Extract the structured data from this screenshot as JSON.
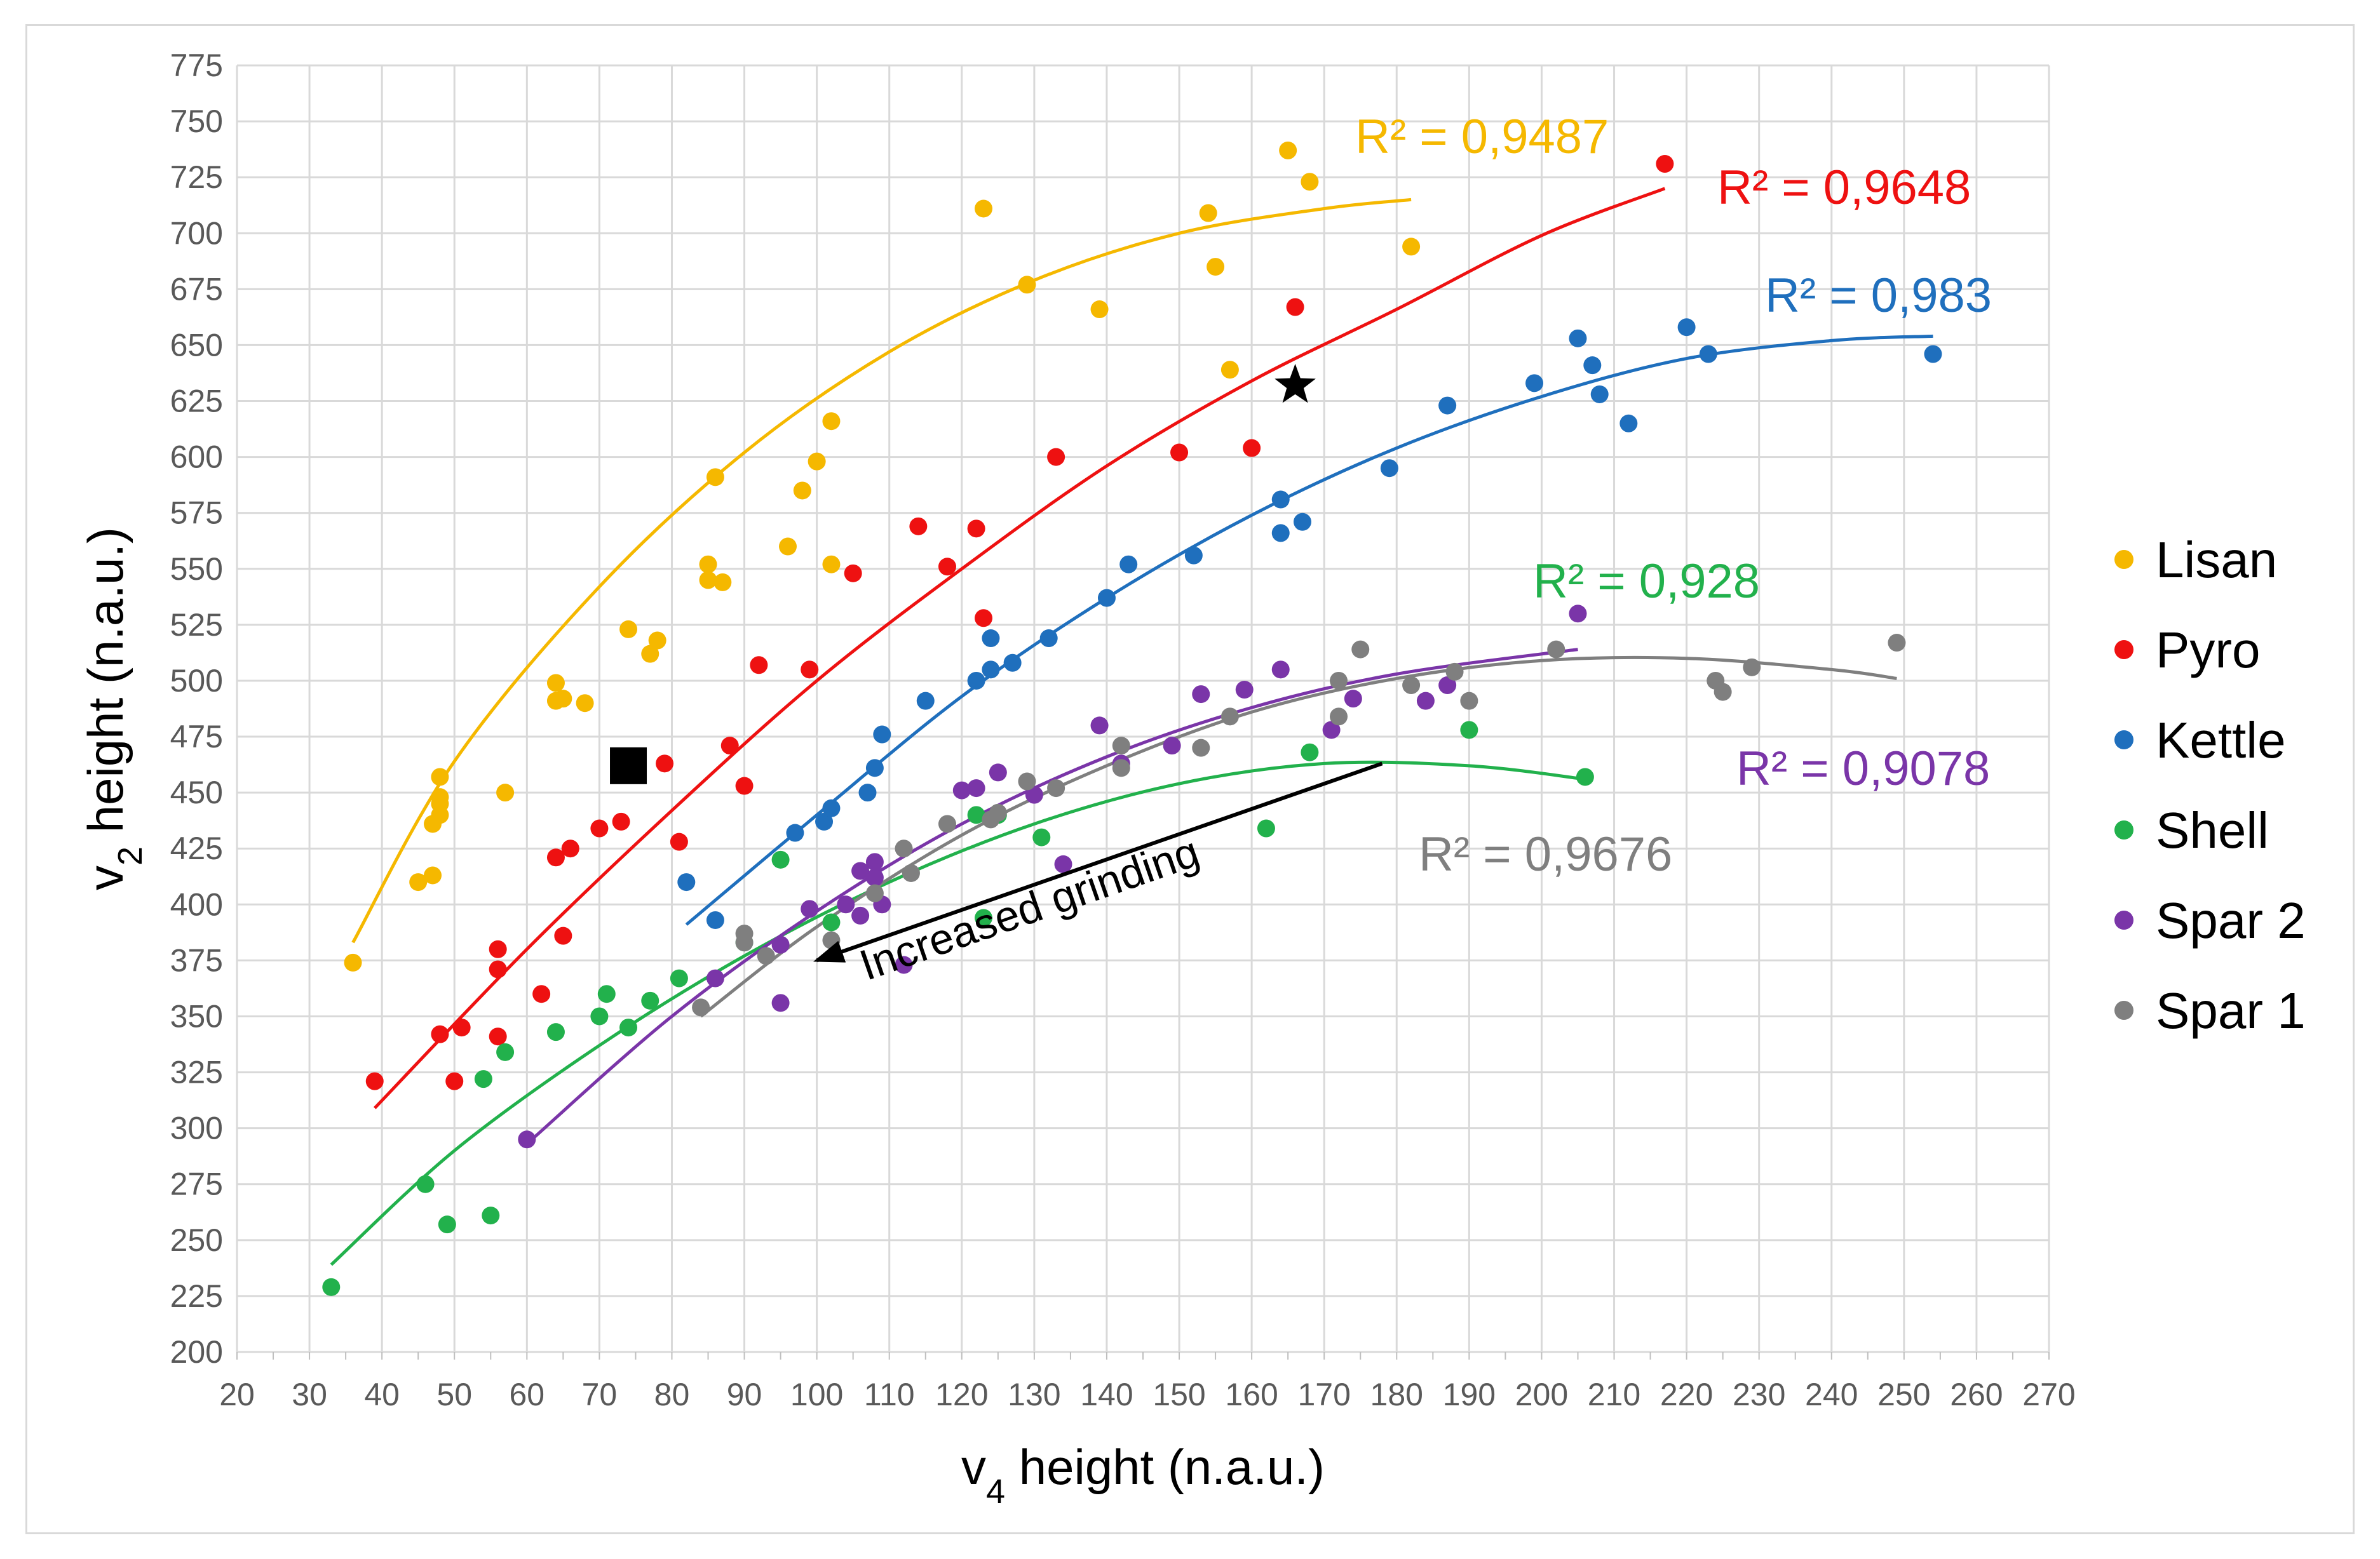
{
  "chart_data": {
    "type": "scatter",
    "title": "",
    "xlabel": "v4 height (n.a.u.)",
    "ylabel": "v2 height (n.a.u.)",
    "xlim": [
      20,
      270
    ],
    "ylim": [
      200,
      775
    ],
    "xticks": [
      20,
      30,
      40,
      50,
      60,
      70,
      80,
      90,
      100,
      110,
      120,
      130,
      140,
      150,
      160,
      170,
      180,
      190,
      200,
      210,
      220,
      230,
      240,
      250,
      260,
      270
    ],
    "yticks": [
      200,
      225,
      250,
      275,
      300,
      325,
      350,
      375,
      400,
      425,
      450,
      475,
      500,
      525,
      550,
      575,
      600,
      625,
      650,
      675,
      700,
      725,
      750,
      775
    ],
    "grid": true,
    "legend_position": "right",
    "series": [
      {
        "name": "Lisan",
        "color": "#f5b800",
        "r2_label": "R² = 0,9487",
        "points": [
          [
            36,
            374
          ],
          [
            45,
            410
          ],
          [
            47,
            413
          ],
          [
            47,
            436
          ],
          [
            48,
            440
          ],
          [
            48,
            445
          ],
          [
            48,
            448
          ],
          [
            48,
            457
          ],
          [
            57,
            450
          ],
          [
            64,
            491
          ],
          [
            64,
            499
          ],
          [
            65,
            492
          ],
          [
            68,
            490
          ],
          [
            74,
            523
          ],
          [
            77,
            512
          ],
          [
            78,
            518
          ],
          [
            85,
            545
          ],
          [
            85,
            552
          ],
          [
            86,
            591
          ],
          [
            87,
            544
          ],
          [
            96,
            560
          ],
          [
            98,
            585
          ],
          [
            100,
            598
          ],
          [
            102,
            552
          ],
          [
            102,
            616
          ],
          [
            123,
            711
          ],
          [
            129,
            677
          ],
          [
            139,
            666
          ],
          [
            154,
            709
          ],
          [
            155,
            685
          ],
          [
            157,
            639
          ],
          [
            165,
            737
          ],
          [
            168,
            723
          ],
          [
            182,
            694
          ]
        ],
        "fit": [
          [
            36,
            383
          ],
          [
            50,
            464
          ],
          [
            70,
            542
          ],
          [
            90,
            602
          ],
          [
            110,
            647
          ],
          [
            130,
            679
          ],
          [
            150,
            700
          ],
          [
            170,
            711
          ],
          [
            182,
            715
          ]
        ]
      },
      {
        "name": "Pyro",
        "color": "#ee1111",
        "r2_label": "R² = 0,9648",
        "points": [
          [
            39,
            321
          ],
          [
            48,
            342
          ],
          [
            50,
            321
          ],
          [
            51,
            345
          ],
          [
            56,
            341
          ],
          [
            56,
            371
          ],
          [
            56,
            380
          ],
          [
            62,
            360
          ],
          [
            64,
            421
          ],
          [
            65,
            386
          ],
          [
            66,
            425
          ],
          [
            70,
            434
          ],
          [
            73,
            437
          ],
          [
            79,
            463
          ],
          [
            81,
            428
          ],
          [
            88,
            471
          ],
          [
            90,
            453
          ],
          [
            92,
            507
          ],
          [
            99,
            505
          ],
          [
            105,
            548
          ],
          [
            114,
            569
          ],
          [
            118,
            551
          ],
          [
            122,
            568
          ],
          [
            123,
            528
          ],
          [
            133,
            600
          ],
          [
            150,
            602
          ],
          [
            160,
            604
          ],
          [
            166,
            667
          ],
          [
            217,
            731
          ]
        ],
        "fit": [
          [
            39,
            309
          ],
          [
            60,
            380
          ],
          [
            80,
            442
          ],
          [
            100,
            500
          ],
          [
            120,
            550
          ],
          [
            140,
            596
          ],
          [
            160,
            634
          ],
          [
            180,
            666
          ],
          [
            200,
            699
          ],
          [
            217,
            720
          ]
        ]
      },
      {
        "name": "Kettle",
        "color": "#1f6fbd",
        "r2_label": "R² = 0,983",
        "points": [
          [
            82,
            410
          ],
          [
            86,
            393
          ],
          [
            97,
            432
          ],
          [
            101,
            437
          ],
          [
            102,
            443
          ],
          [
            107,
            450
          ],
          [
            108,
            461
          ],
          [
            109,
            476
          ],
          [
            115,
            491
          ],
          [
            122,
            500
          ],
          [
            124,
            505
          ],
          [
            124,
            519
          ],
          [
            127,
            508
          ],
          [
            132,
            519
          ],
          [
            140,
            537
          ],
          [
            143,
            552
          ],
          [
            152,
            556
          ],
          [
            164,
            566
          ],
          [
            164,
            581
          ],
          [
            167,
            571
          ],
          [
            179,
            595
          ],
          [
            187,
            623
          ],
          [
            199,
            633
          ],
          [
            205,
            653
          ],
          [
            207,
            641
          ],
          [
            208,
            628
          ],
          [
            212,
            615
          ],
          [
            220,
            658
          ],
          [
            223,
            646
          ],
          [
            254,
            646
          ]
        ],
        "fit": [
          [
            82,
            391
          ],
          [
            100,
            440
          ],
          [
            120,
            493
          ],
          [
            140,
            537
          ],
          [
            160,
            574
          ],
          [
            180,
            604
          ],
          [
            200,
            627
          ],
          [
            220,
            644
          ],
          [
            240,
            652
          ],
          [
            254,
            654
          ]
        ]
      },
      {
        "name": "Shell",
        "color": "#22b14c",
        "r2_label": "R² = 0,928",
        "points": [
          [
            33,
            229
          ],
          [
            46,
            275
          ],
          [
            49,
            257
          ],
          [
            54,
            322
          ],
          [
            55,
            261
          ],
          [
            57,
            334
          ],
          [
            64,
            343
          ],
          [
            70,
            350
          ],
          [
            71,
            360
          ],
          [
            74,
            345
          ],
          [
            77,
            357
          ],
          [
            81,
            367
          ],
          [
            90,
            383
          ],
          [
            95,
            420
          ],
          [
            102,
            392
          ],
          [
            122,
            440
          ],
          [
            123,
            394
          ],
          [
            125,
            440
          ],
          [
            131,
            430
          ],
          [
            162,
            434
          ],
          [
            168,
            468
          ],
          [
            190,
            478
          ],
          [
            206,
            457
          ]
        ],
        "fit": [
          [
            33,
            239
          ],
          [
            50,
            290
          ],
          [
            70,
            337
          ],
          [
            90,
            377
          ],
          [
            110,
            410
          ],
          [
            130,
            436
          ],
          [
            150,
            454
          ],
          [
            170,
            463
          ],
          [
            190,
            462
          ],
          [
            206,
            456
          ]
        ]
      },
      {
        "name": "Spar 2",
        "color": "#7a35a8",
        "r2_label": "R² = 0,9078",
        "points": [
          [
            60,
            295
          ],
          [
            86,
            367
          ],
          [
            95,
            356
          ],
          [
            95,
            382
          ],
          [
            99,
            398
          ],
          [
            104,
            400
          ],
          [
            106,
            395
          ],
          [
            106,
            415
          ],
          [
            108,
            412
          ],
          [
            108,
            419
          ],
          [
            109,
            400
          ],
          [
            112,
            373
          ],
          [
            120,
            451
          ],
          [
            122,
            452
          ],
          [
            125,
            459
          ],
          [
            130,
            449
          ],
          [
            134,
            418
          ],
          [
            139,
            480
          ],
          [
            142,
            463
          ],
          [
            149,
            471
          ],
          [
            153,
            494
          ],
          [
            159,
            496
          ],
          [
            164,
            505
          ],
          [
            171,
            478
          ],
          [
            174,
            492
          ],
          [
            184,
            491
          ],
          [
            187,
            498
          ],
          [
            205,
            530
          ]
        ],
        "fit": [
          [
            60,
            293
          ],
          [
            80,
            350
          ],
          [
            100,
            397
          ],
          [
            120,
            436
          ],
          [
            140,
            466
          ],
          [
            160,
            488
          ],
          [
            180,
            503
          ],
          [
            205,
            514
          ]
        ]
      },
      {
        "name": "Spar 1",
        "color": "#7f7f7f",
        "r2_label": "R² = 0,9676",
        "points": [
          [
            84,
            354
          ],
          [
            90,
            383
          ],
          [
            90,
            387
          ],
          [
            93,
            377
          ],
          [
            102,
            384
          ],
          [
            108,
            405
          ],
          [
            112,
            425
          ],
          [
            113,
            414
          ],
          [
            118,
            436
          ],
          [
            124,
            438
          ],
          [
            125,
            441
          ],
          [
            129,
            455
          ],
          [
            133,
            452
          ],
          [
            142,
            471
          ],
          [
            142,
            461
          ],
          [
            153,
            470
          ],
          [
            157,
            484
          ],
          [
            172,
            484
          ],
          [
            172,
            500
          ],
          [
            175,
            514
          ],
          [
            182,
            498
          ],
          [
            188,
            504
          ],
          [
            190,
            491
          ],
          [
            202,
            514
          ],
          [
            224,
            500
          ],
          [
            225,
            495
          ],
          [
            229,
            506
          ],
          [
            249,
            517
          ]
        ],
        "fit": [
          [
            84,
            350
          ],
          [
            100,
            390
          ],
          [
            120,
            431
          ],
          [
            140,
            462
          ],
          [
            160,
            486
          ],
          [
            180,
            501
          ],
          [
            200,
            509
          ],
          [
            220,
            510
          ],
          [
            240,
            505
          ],
          [
            249,
            501
          ]
        ]
      }
    ],
    "markers": [
      {
        "name": "square",
        "x": 74,
        "y": 462,
        "color": "#000000"
      },
      {
        "name": "star",
        "x": 166,
        "y": 632,
        "color": "#000000"
      }
    ],
    "annotations": [
      {
        "text": "Increased grinding",
        "arrow_from": [
          178,
          463
        ],
        "arrow_to": [
          100,
          375
        ]
      }
    ]
  }
}
